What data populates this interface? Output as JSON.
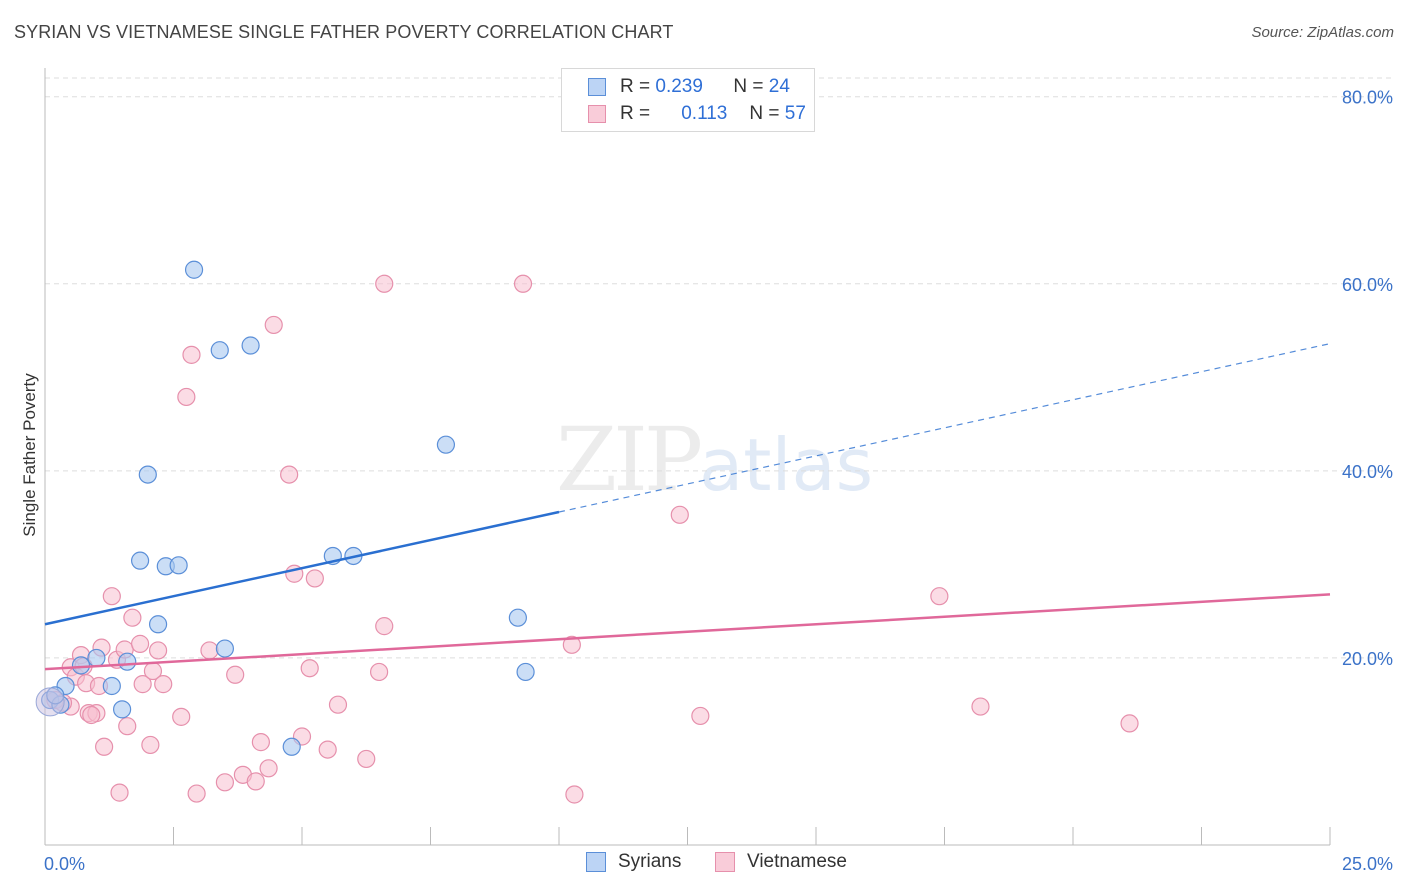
{
  "title": "SYRIAN VS VIETNAMESE SINGLE FATHER POVERTY CORRELATION CHART",
  "source": "Source: ZipAtlas.com",
  "watermark": {
    "zip": "ZIP",
    "atlas": "atlas"
  },
  "legend": {
    "syrians": {
      "r_label": "R = ",
      "r_value": "0.239",
      "n_label": "N = ",
      "n_value": "24"
    },
    "vietnamese": {
      "r_label": "R = ",
      "r_value": "0.113",
      "n_label": "N = ",
      "n_value": "57"
    }
  },
  "colors": {
    "syrians_fill": "#a9c8f0",
    "syrians_stroke": "#5b8fd8",
    "syrians_line": "#2a6fd0",
    "vietnamese_fill": "#f7bfd0",
    "vietnamese_stroke": "#e690ac",
    "vietnamese_line": "#e0689a",
    "grid": "#dddddd",
    "axis_label": "#3b72c8"
  },
  "chart_data": {
    "type": "scatter",
    "title": "SYRIAN VS VIETNAMESE SINGLE FATHER POVERTY CORRELATION CHART",
    "xlabel": "",
    "ylabel": "Single Father Poverty",
    "xlim": [
      0,
      25
    ],
    "ylim": [
      0,
      82
    ],
    "x_tick_labels": [
      "0.0%",
      "25.0%"
    ],
    "y_ticks": [
      20,
      40,
      60,
      80
    ],
    "y_tick_labels": [
      "20.0%",
      "40.0%",
      "60.0%",
      "80.0%"
    ],
    "grid": true,
    "legend_position": "top-center",
    "series": [
      {
        "name": "Syrians",
        "r": 0.239,
        "n": 24,
        "trend": {
          "x0": 0,
          "y0": 23.6,
          "x1": 10,
          "y1": 35.6,
          "dashed_to_x": 25,
          "dashed_to_y": 53.6
        },
        "points": [
          [
            0.1,
            15.5
          ],
          [
            0.3,
            15.0
          ],
          [
            0.4,
            17.0
          ],
          [
            0.7,
            19.2
          ],
          [
            1.0,
            20.0
          ],
          [
            1.3,
            17.0
          ],
          [
            1.5,
            14.5
          ],
          [
            1.6,
            19.6
          ],
          [
            1.85,
            30.4
          ],
          [
            2.0,
            39.6
          ],
          [
            2.2,
            23.6
          ],
          [
            2.35,
            29.8
          ],
          [
            2.6,
            29.9
          ],
          [
            2.9,
            61.5
          ],
          [
            3.4,
            52.9
          ],
          [
            3.5,
            21.0
          ],
          [
            4.0,
            53.4
          ],
          [
            4.8,
            10.5
          ],
          [
            5.6,
            30.9
          ],
          [
            6.0,
            30.9
          ],
          [
            7.8,
            42.8
          ],
          [
            9.2,
            24.3
          ],
          [
            9.35,
            18.5
          ],
          [
            0.2,
            16.0
          ]
        ]
      },
      {
        "name": "Vietnamese",
        "r": 0.113,
        "n": 57,
        "trend": {
          "x0": 0,
          "y0": 18.8,
          "x1": 25,
          "y1": 26.8
        },
        "points": [
          [
            0.2,
            15.5
          ],
          [
            0.5,
            14.8
          ],
          [
            0.5,
            19.0
          ],
          [
            0.6,
            18.0
          ],
          [
            0.7,
            20.3
          ],
          [
            0.75,
            19.1
          ],
          [
            0.8,
            17.3
          ],
          [
            0.85,
            14.1
          ],
          [
            1.0,
            14.1
          ],
          [
            1.05,
            17.0
          ],
          [
            1.1,
            21.1
          ],
          [
            1.15,
            10.5
          ],
          [
            1.3,
            26.6
          ],
          [
            1.4,
            19.8
          ],
          [
            1.45,
            5.6
          ],
          [
            1.55,
            20.9
          ],
          [
            1.6,
            12.7
          ],
          [
            1.7,
            24.3
          ],
          [
            1.85,
            21.5
          ],
          [
            1.9,
            17.2
          ],
          [
            2.05,
            10.7
          ],
          [
            2.1,
            18.6
          ],
          [
            2.2,
            20.8
          ],
          [
            2.3,
            17.2
          ],
          [
            2.65,
            13.7
          ],
          [
            2.75,
            47.9
          ],
          [
            2.85,
            52.4
          ],
          [
            2.95,
            5.5
          ],
          [
            3.2,
            20.8
          ],
          [
            3.5,
            6.7
          ],
          [
            3.7,
            18.2
          ],
          [
            3.85,
            7.5
          ],
          [
            4.1,
            6.8
          ],
          [
            4.2,
            11.0
          ],
          [
            4.35,
            8.2
          ],
          [
            4.45,
            55.6
          ],
          [
            4.75,
            39.6
          ],
          [
            4.85,
            29.0
          ],
          [
            5.0,
            11.6
          ],
          [
            5.15,
            18.9
          ],
          [
            5.25,
            28.5
          ],
          [
            5.5,
            10.2
          ],
          [
            5.7,
            15.0
          ],
          [
            6.25,
            9.2
          ],
          [
            6.5,
            18.5
          ],
          [
            6.6,
            23.4
          ],
          [
            6.6,
            60.0
          ],
          [
            9.3,
            60.0
          ],
          [
            10.25,
            21.4
          ],
          [
            10.3,
            5.4
          ],
          [
            12.35,
            35.3
          ],
          [
            12.75,
            13.8
          ],
          [
            17.4,
            26.6
          ],
          [
            18.2,
            14.8
          ],
          [
            21.1,
            13.0
          ],
          [
            0.35,
            15.2
          ],
          [
            0.9,
            13.9
          ]
        ]
      }
    ]
  }
}
